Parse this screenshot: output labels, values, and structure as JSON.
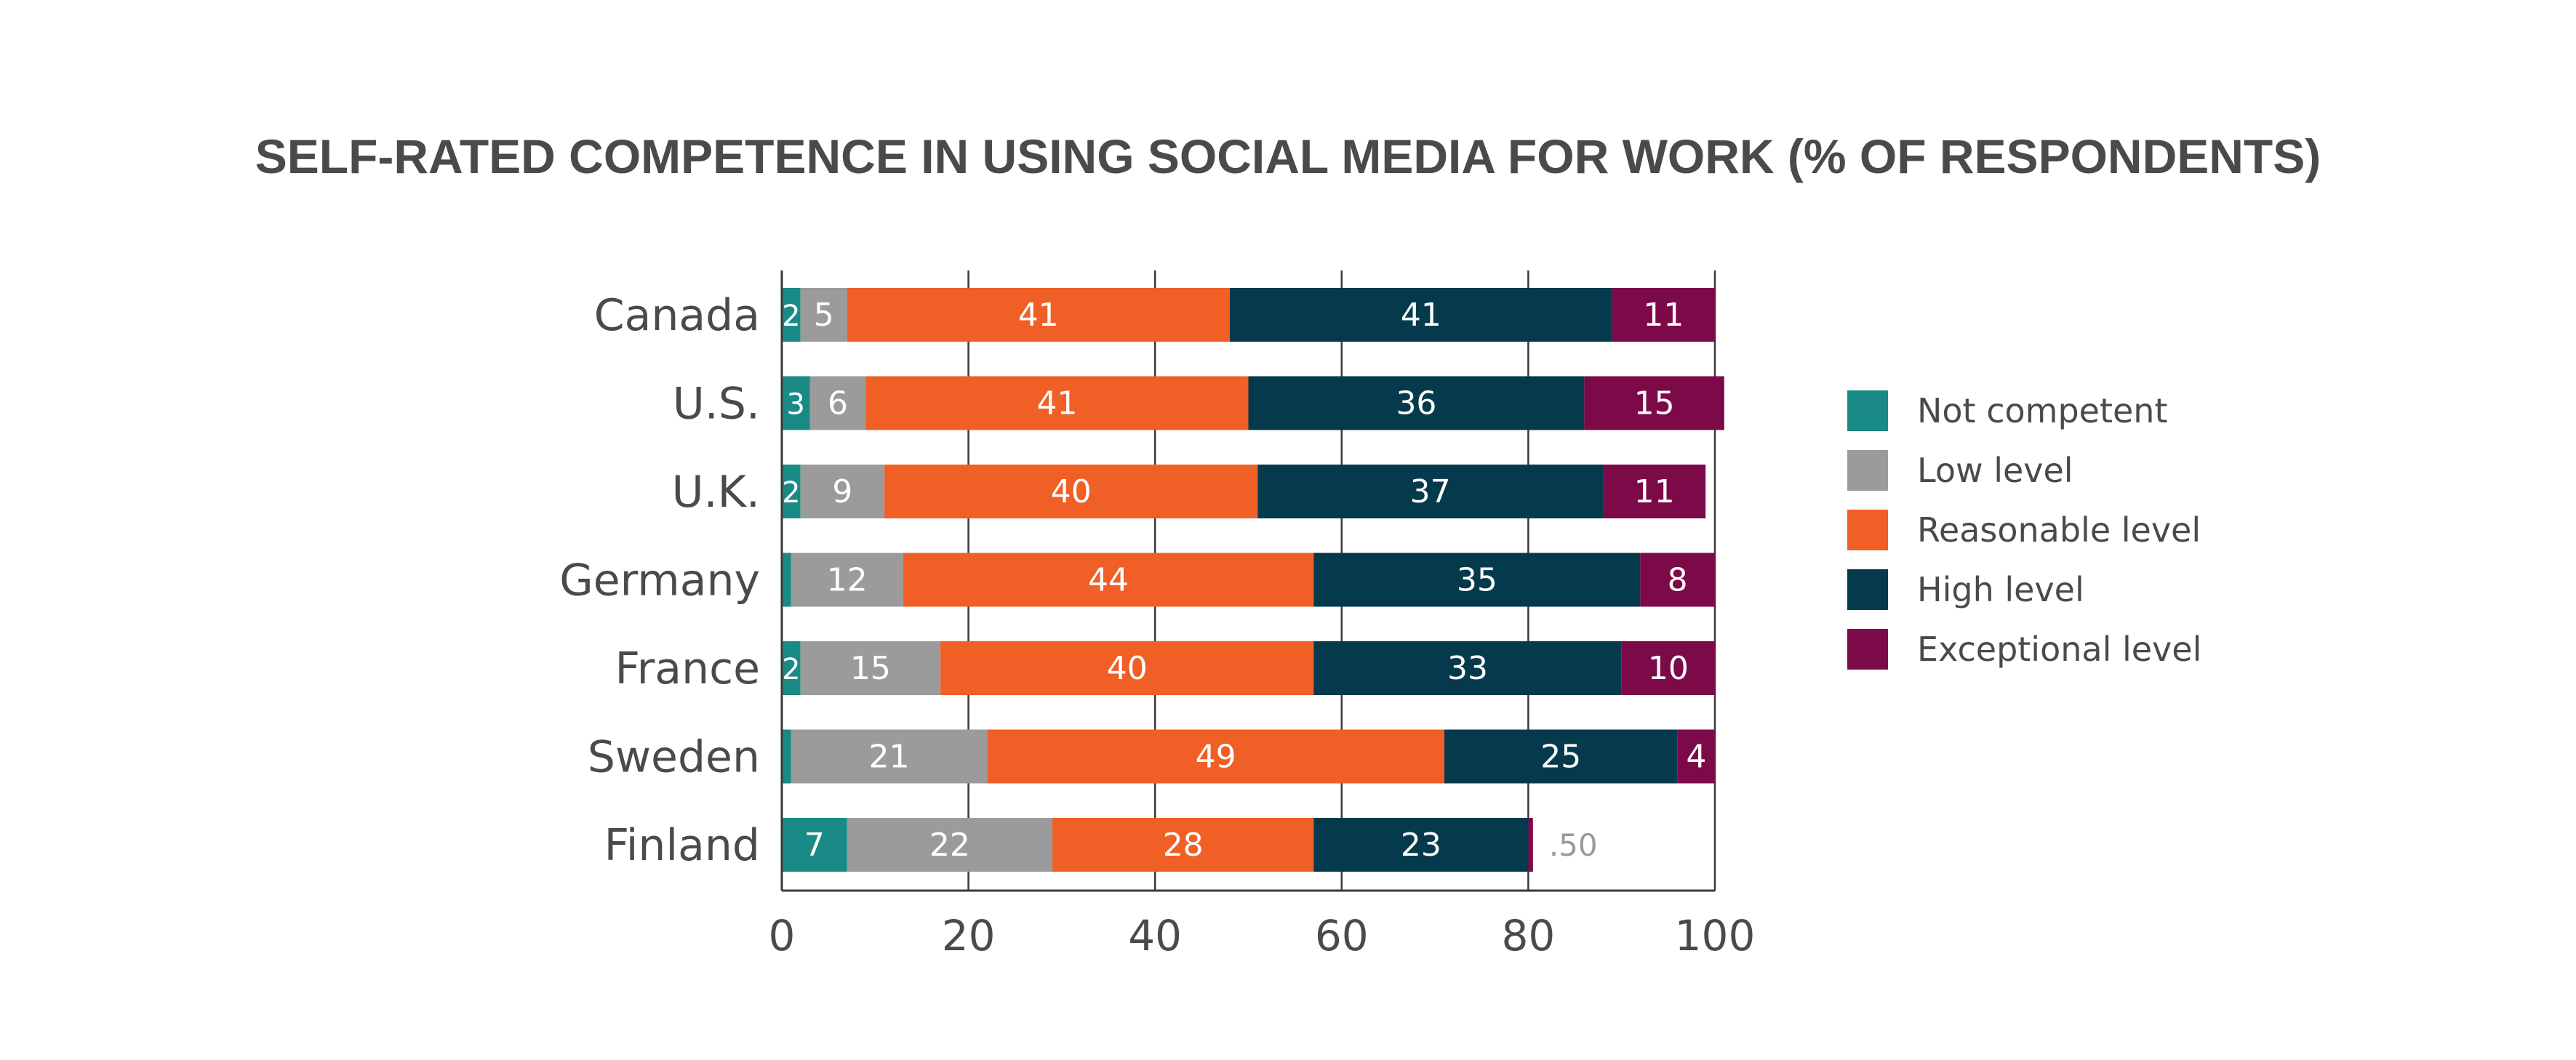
{
  "chart_data": {
    "type": "bar",
    "orientation": "horizontal",
    "stacked": true,
    "title": "SELF-RATED COMPETENCE IN USING SOCIAL MEDIA FOR WORK (% OF RESPONDENTS)",
    "xlabel": "",
    "ylabel": "",
    "xlim": [
      0,
      100
    ],
    "xticks": [
      "0",
      "20",
      "40",
      "60",
      "80",
      "100"
    ],
    "grid": true,
    "legend_position": "right",
    "categories": [
      "Canada",
      "U.S.",
      "U.K.",
      "Germany",
      "France",
      "Sweden",
      "Finland"
    ],
    "series": [
      {
        "name": "Not competent",
        "color": "#1a8a86",
        "values": [
          2,
          3,
          2,
          1,
          2,
          1,
          7
        ]
      },
      {
        "name": "Low level",
        "color": "#9b9b9b",
        "values": [
          5,
          6,
          9,
          12,
          15,
          21,
          22
        ]
      },
      {
        "name": "Reasonable level",
        "color": "#f05f25",
        "values": [
          41,
          41,
          40,
          44,
          40,
          49,
          28
        ]
      },
      {
        "name": "High level",
        "color": "#053a4c",
        "values": [
          41,
          36,
          37,
          35,
          33,
          25,
          23
        ]
      },
      {
        "name": "Exceptional level",
        "color": "#7d0a48",
        "values": [
          11,
          15,
          11,
          8,
          10,
          4,
          0.5
        ]
      }
    ],
    "annotations": [
      {
        "category": "Finland",
        "series": "Exceptional level",
        "text": ".50"
      }
    ]
  }
}
